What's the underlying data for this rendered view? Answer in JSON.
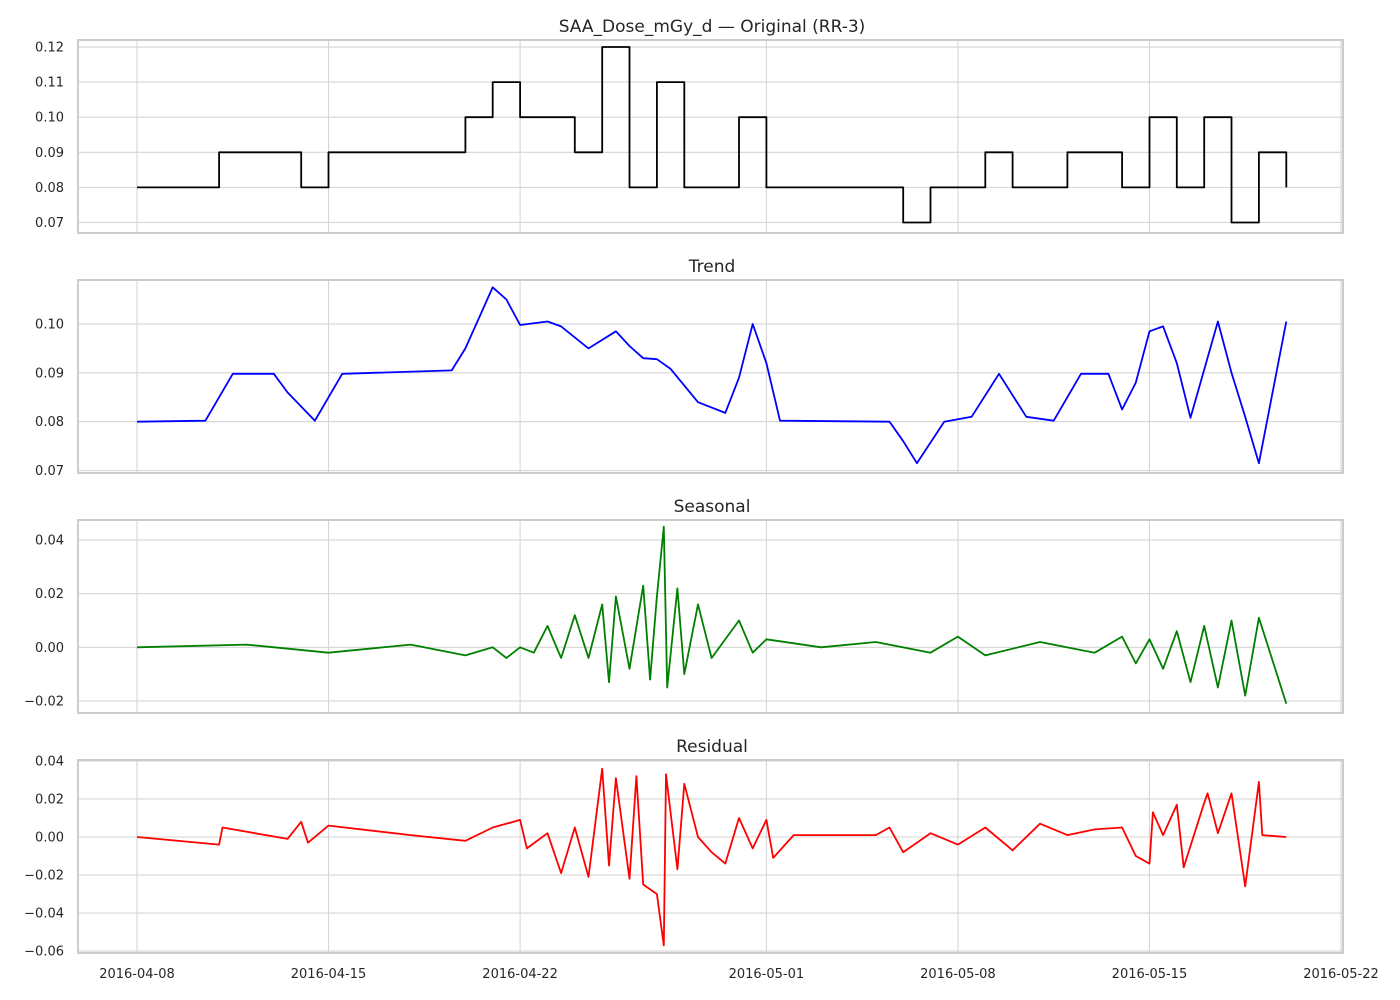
{
  "chart_data": [
    {
      "type": "line",
      "title": "SAA_Dose_mGy_d — Original (RR-3)",
      "ylim": [
        0.067,
        0.122
      ],
      "yticks": [
        0.07,
        0.08,
        0.09,
        0.1,
        0.11,
        0.12
      ],
      "ytick_labels": [
        "0.07",
        "0.08",
        "0.09",
        "0.10",
        "0.11",
        "0.12"
      ],
      "grid": true,
      "series": [
        {
          "color": "#000000",
          "step": true,
          "points": [
            [
              "2016-04-08 00:00",
              0.08
            ],
            [
              "2016-04-11 00:00",
              0.09
            ],
            [
              "2016-04-14 00:00",
              0.08
            ],
            [
              "2016-04-15 00:00",
              0.09
            ],
            [
              "2016-04-20 00:00",
              0.1
            ],
            [
              "2016-04-21 00:00",
              0.11
            ],
            [
              "2016-04-22 00:00",
              0.1
            ],
            [
              "2016-04-24 00:00",
              0.09
            ],
            [
              "2016-04-25 00:00",
              0.12
            ],
            [
              "2016-04-26 00:00",
              0.08
            ],
            [
              "2016-04-27 00:00",
              0.11
            ],
            [
              "2016-04-28 00:00",
              0.08
            ],
            [
              "2016-04-30 00:00",
              0.1
            ],
            [
              "2016-05-01 00:00",
              0.08
            ],
            [
              "2016-05-06 00:00",
              0.07
            ],
            [
              "2016-05-07 00:00",
              0.08
            ],
            [
              "2016-05-09 00:00",
              0.09
            ],
            [
              "2016-05-10 00:00",
              0.08
            ],
            [
              "2016-05-12 00:00",
              0.09
            ],
            [
              "2016-05-14 00:00",
              0.08
            ],
            [
              "2016-05-15 00:00",
              0.1
            ],
            [
              "2016-05-16 00:00",
              0.08
            ],
            [
              "2016-05-17 00:00",
              0.1
            ],
            [
              "2016-05-18 00:00",
              0.07
            ],
            [
              "2016-05-19 00:00",
              0.09
            ],
            [
              "2016-05-20 00:00",
              0.08
            ]
          ]
        }
      ]
    },
    {
      "type": "line",
      "title": "Trend",
      "ylim": [
        0.0695,
        0.109
      ],
      "yticks": [
        0.07,
        0.08,
        0.09,
        0.1
      ],
      "ytick_labels": [
        "0.07",
        "0.08",
        "0.09",
        "0.10"
      ],
      "grid": true,
      "series": [
        {
          "color": "#0000ff",
          "points": [
            [
              "2016-04-08 00:00",
              0.08
            ],
            [
              "2016-04-10 12:00",
              0.0802
            ],
            [
              "2016-04-11 12:00",
              0.0898
            ],
            [
              "2016-04-13 00:00",
              0.0898
            ],
            [
              "2016-04-13 12:00",
              0.086
            ],
            [
              "2016-04-14 12:00",
              0.0802
            ],
            [
              "2016-04-15 12:00",
              0.0898
            ],
            [
              "2016-04-19 12:00",
              0.0905
            ],
            [
              "2016-04-20 00:00",
              0.095
            ],
            [
              "2016-04-21 00:00",
              0.1075
            ],
            [
              "2016-04-21 12:00",
              0.105
            ],
            [
              "2016-04-22 00:00",
              0.0998
            ],
            [
              "2016-04-23 00:00",
              0.1005
            ],
            [
              "2016-04-23 12:00",
              0.0995
            ],
            [
              "2016-04-24 12:00",
              0.095
            ],
            [
              "2016-04-25 12:00",
              0.0985
            ],
            [
              "2016-04-26 00:00",
              0.0955
            ],
            [
              "2016-04-26 12:00",
              0.093
            ],
            [
              "2016-04-27 00:00",
              0.0928
            ],
            [
              "2016-04-27 12:00",
              0.0908
            ],
            [
              "2016-04-28 12:00",
              0.084
            ],
            [
              "2016-04-29 12:00",
              0.0818
            ],
            [
              "2016-04-30 00:00",
              0.089
            ],
            [
              "2016-04-30 12:00",
              0.1
            ],
            [
              "2016-05-01 00:00",
              0.092
            ],
            [
              "2016-05-01 12:00",
              0.0802
            ],
            [
              "2016-05-05 12:00",
              0.08
            ],
            [
              "2016-05-06 00:00",
              0.076
            ],
            [
              "2016-05-06 12:00",
              0.0715
            ],
            [
              "2016-05-07 12:00",
              0.08
            ],
            [
              "2016-05-08 12:00",
              0.081
            ],
            [
              "2016-05-09 12:00",
              0.0898
            ],
            [
              "2016-05-10 12:00",
              0.081
            ],
            [
              "2016-05-11 12:00",
              0.0802
            ],
            [
              "2016-05-12 12:00",
              0.0898
            ],
            [
              "2016-05-13 12:00",
              0.0898
            ],
            [
              "2016-05-14 00:00",
              0.0825
            ],
            [
              "2016-05-14 12:00",
              0.088
            ],
            [
              "2016-05-15 00:00",
              0.0985
            ],
            [
              "2016-05-15 12:00",
              0.0995
            ],
            [
              "2016-05-16 00:00",
              0.092
            ],
            [
              "2016-05-16 12:00",
              0.0808
            ],
            [
              "2016-05-17 12:00",
              0.1005
            ],
            [
              "2016-05-18 00:00",
              0.09
            ],
            [
              "2016-05-18 12:00",
              0.081
            ],
            [
              "2016-05-19 00:00",
              0.0715
            ],
            [
              "2016-05-20 00:00",
              0.1005
            ]
          ]
        }
      ]
    },
    {
      "type": "line",
      "title": "Seasonal",
      "ylim": [
        -0.0245,
        0.0475
      ],
      "yticks": [
        -0.02,
        0.0,
        0.02,
        0.04
      ],
      "ytick_labels": [
        "−0.02",
        "0.00",
        "0.02",
        "0.04"
      ],
      "grid": true,
      "series": [
        {
          "color": "#008000",
          "points": [
            [
              "2016-04-08 00:00",
              0.0
            ],
            [
              "2016-04-12 00:00",
              0.001
            ],
            [
              "2016-04-15 00:00",
              -0.002
            ],
            [
              "2016-04-18 00:00",
              0.001
            ],
            [
              "2016-04-20 00:00",
              -0.003
            ],
            [
              "2016-04-21 00:00",
              0.0
            ],
            [
              "2016-04-21 12:00",
              -0.004
            ],
            [
              "2016-04-22 00:00",
              0.0
            ],
            [
              "2016-04-22 12:00",
              -0.002
            ],
            [
              "2016-04-23 00:00",
              0.008
            ],
            [
              "2016-04-23 12:00",
              -0.004
            ],
            [
              "2016-04-24 00:00",
              0.012
            ],
            [
              "2016-04-24 12:00",
              -0.004
            ],
            [
              "2016-04-25 00:00",
              0.016
            ],
            [
              "2016-04-25 06:00",
              -0.013
            ],
            [
              "2016-04-25 12:00",
              0.019
            ],
            [
              "2016-04-26 00:00",
              -0.008
            ],
            [
              "2016-04-26 12:00",
              0.023
            ],
            [
              "2016-04-26 18:00",
              -0.012
            ],
            [
              "2016-04-27 00:00",
              0.019
            ],
            [
              "2016-04-27 06:00",
              0.045
            ],
            [
              "2016-04-27 09:00",
              -0.015
            ],
            [
              "2016-04-27 18:00",
              0.022
            ],
            [
              "2016-04-28 00:00",
              -0.01
            ],
            [
              "2016-04-28 12:00",
              0.016
            ],
            [
              "2016-04-29 00:00",
              -0.004
            ],
            [
              "2016-04-30 00:00",
              0.01
            ],
            [
              "2016-04-30 12:00",
              -0.002
            ],
            [
              "2016-05-01 00:00",
              0.003
            ],
            [
              "2016-05-03 00:00",
              0.0
            ],
            [
              "2016-05-05 00:00",
              0.002
            ],
            [
              "2016-05-07 00:00",
              -0.002
            ],
            [
              "2016-05-08 00:00",
              0.004
            ],
            [
              "2016-05-09 00:00",
              -0.003
            ],
            [
              "2016-05-11 00:00",
              0.002
            ],
            [
              "2016-05-13 00:00",
              -0.002
            ],
            [
              "2016-05-14 00:00",
              0.004
            ],
            [
              "2016-05-14 12:00",
              -0.006
            ],
            [
              "2016-05-15 00:00",
              0.003
            ],
            [
              "2016-05-15 12:00",
              -0.008
            ],
            [
              "2016-05-16 00:00",
              0.006
            ],
            [
              "2016-05-16 12:00",
              -0.013
            ],
            [
              "2016-05-17 00:00",
              0.008
            ],
            [
              "2016-05-17 12:00",
              -0.015
            ],
            [
              "2016-05-18 00:00",
              0.01
            ],
            [
              "2016-05-18 12:00",
              -0.018
            ],
            [
              "2016-05-19 00:00",
              0.011
            ],
            [
              "2016-05-20 00:00",
              -0.021
            ]
          ]
        }
      ]
    },
    {
      "type": "line",
      "title": "Residual",
      "ylim": [
        -0.061,
        0.0405
      ],
      "yticks": [
        -0.06,
        -0.04,
        -0.02,
        0.0,
        0.02,
        0.04
      ],
      "ytick_labels": [
        "−0.06",
        "−0.04",
        "−0.02",
        "0.00",
        "0.02",
        "0.04"
      ],
      "xticks": [
        "2016-04-08",
        "2016-04-15",
        "2016-04-22",
        "2016-05-01",
        "2016-05-08",
        "2016-05-15",
        "2016-05-22"
      ],
      "grid": true,
      "series": [
        {
          "color": "#ff0000",
          "points": [
            [
              "2016-04-08 00:00",
              0.0
            ],
            [
              "2016-04-11 00:00",
              -0.004
            ],
            [
              "2016-04-11 03:00",
              0.005
            ],
            [
              "2016-04-13 12:00",
              -0.001
            ],
            [
              "2016-04-14 00:00",
              0.008
            ],
            [
              "2016-04-14 06:00",
              -0.003
            ],
            [
              "2016-04-15 00:00",
              0.006
            ],
            [
              "2016-04-18 00:00",
              0.001
            ],
            [
              "2016-04-20 00:00",
              -0.002
            ],
            [
              "2016-04-21 00:00",
              0.005
            ],
            [
              "2016-04-22 00:00",
              0.009
            ],
            [
              "2016-04-22 06:00",
              -0.006
            ],
            [
              "2016-04-23 00:00",
              0.002
            ],
            [
              "2016-04-23 12:00",
              -0.019
            ],
            [
              "2016-04-24 00:00",
              0.005
            ],
            [
              "2016-04-24 12:00",
              -0.021
            ],
            [
              "2016-04-25 00:00",
              0.036
            ],
            [
              "2016-04-25 06:00",
              -0.015
            ],
            [
              "2016-04-25 12:00",
              0.031
            ],
            [
              "2016-04-26 00:00",
              -0.022
            ],
            [
              "2016-04-26 06:00",
              0.032
            ],
            [
              "2016-04-26 12:00",
              -0.025
            ],
            [
              "2016-04-27 00:00",
              -0.03
            ],
            [
              "2016-04-27 06:00",
              -0.057
            ],
            [
              "2016-04-27 08:00",
              0.033
            ],
            [
              "2016-04-27 18:00",
              -0.017
            ],
            [
              "2016-04-28 00:00",
              0.028
            ],
            [
              "2016-04-28 12:00",
              0.0
            ],
            [
              "2016-04-29 00:00",
              -0.008
            ],
            [
              "2016-04-29 12:00",
              -0.014
            ],
            [
              "2016-04-30 00:00",
              0.01
            ],
            [
              "2016-04-30 12:00",
              -0.006
            ],
            [
              "2016-05-01 00:00",
              0.009
            ],
            [
              "2016-05-01 06:00",
              -0.011
            ],
            [
              "2016-05-02 00:00",
              0.001
            ],
            [
              "2016-05-05 00:00",
              0.001
            ],
            [
              "2016-05-05 12:00",
              0.005
            ],
            [
              "2016-05-06 00:00",
              -0.008
            ],
            [
              "2016-05-07 00:00",
              0.002
            ],
            [
              "2016-05-08 00:00",
              -0.004
            ],
            [
              "2016-05-09 00:00",
              0.005
            ],
            [
              "2016-05-10 00:00",
              -0.007
            ],
            [
              "2016-05-11 00:00",
              0.007
            ],
            [
              "2016-05-12 00:00",
              0.001
            ],
            [
              "2016-05-13 00:00",
              0.004
            ],
            [
              "2016-05-14 00:00",
              0.005
            ],
            [
              "2016-05-14 12:00",
              -0.01
            ],
            [
              "2016-05-15 00:00",
              -0.014
            ],
            [
              "2016-05-15 03:00",
              0.013
            ],
            [
              "2016-05-15 12:00",
              0.001
            ],
            [
              "2016-05-16 00:00",
              0.017
            ],
            [
              "2016-05-16 06:00",
              -0.016
            ],
            [
              "2016-05-17 00:00",
              0.018
            ],
            [
              "2016-05-17 03:00",
              0.023
            ],
            [
              "2016-05-17 12:00",
              0.002
            ],
            [
              "2016-05-18 00:00",
              0.023
            ],
            [
              "2016-05-18 12:00",
              -0.026
            ],
            [
              "2016-05-19 00:00",
              0.029
            ],
            [
              "2016-05-19 03:00",
              0.001
            ],
            [
              "2016-05-20 00:00",
              0.0
            ]
          ]
        }
      ]
    }
  ]
}
